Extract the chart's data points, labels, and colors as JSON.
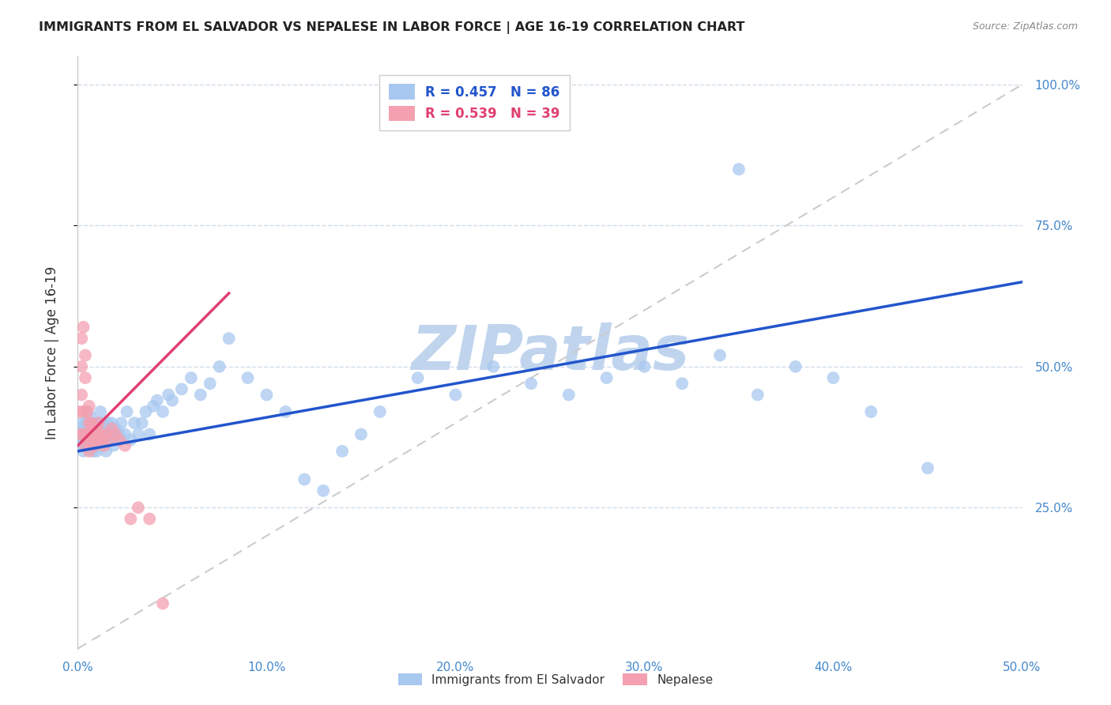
{
  "title": "IMMIGRANTS FROM EL SALVADOR VS NEPALESE IN LABOR FORCE | AGE 16-19 CORRELATION CHART",
  "source": "Source: ZipAtlas.com",
  "ylabel": "In Labor Force | Age 16-19",
  "xlim": [
    0.0,
    0.5
  ],
  "ylim": [
    0.0,
    1.05
  ],
  "xticks": [
    0.0,
    0.1,
    0.2,
    0.3,
    0.4,
    0.5
  ],
  "xticklabels": [
    "0.0%",
    "10.0%",
    "20.0%",
    "30.0%",
    "40.0%",
    "50.0%"
  ],
  "yticks": [
    0.25,
    0.5,
    0.75,
    1.0
  ],
  "yticklabels": [
    "25.0%",
    "50.0%",
    "75.0%",
    "100.0%"
  ],
  "R_salvador": 0.457,
  "N_salvador": 86,
  "R_nepalese": 0.539,
  "N_nepalese": 39,
  "salvador_color": "#a8c8f0",
  "nepalese_color": "#f4a0b0",
  "salvador_line_color": "#2255cc",
  "nepalese_line_color": "#e04070",
  "watermark": "ZIPatlas",
  "watermark_color": "#c0d4ee",
  "legend_salvador": "Immigrants from El Salvador",
  "legend_nepalese": "Nepalese",
  "salvador_x": [
    0.001,
    0.002,
    0.002,
    0.003,
    0.003,
    0.003,
    0.004,
    0.004,
    0.005,
    0.005,
    0.005,
    0.006,
    0.006,
    0.006,
    0.007,
    0.007,
    0.007,
    0.008,
    0.008,
    0.008,
    0.009,
    0.009,
    0.01,
    0.01,
    0.01,
    0.011,
    0.011,
    0.012,
    0.012,
    0.013,
    0.013,
    0.014,
    0.015,
    0.015,
    0.016,
    0.016,
    0.017,
    0.018,
    0.018,
    0.019,
    0.02,
    0.021,
    0.022,
    0.023,
    0.025,
    0.026,
    0.028,
    0.03,
    0.032,
    0.034,
    0.036,
    0.038,
    0.04,
    0.042,
    0.045,
    0.048,
    0.05,
    0.055,
    0.06,
    0.065,
    0.07,
    0.075,
    0.08,
    0.09,
    0.1,
    0.11,
    0.12,
    0.13,
    0.14,
    0.15,
    0.16,
    0.18,
    0.2,
    0.22,
    0.24,
    0.26,
    0.28,
    0.3,
    0.32,
    0.34,
    0.36,
    0.38,
    0.4,
    0.42,
    0.45,
    0.35
  ],
  "salvador_y": [
    0.38,
    0.36,
    0.4,
    0.37,
    0.39,
    0.35,
    0.4,
    0.37,
    0.38,
    0.42,
    0.36,
    0.39,
    0.37,
    0.4,
    0.38,
    0.36,
    0.41,
    0.37,
    0.39,
    0.35,
    0.38,
    0.4,
    0.37,
    0.39,
    0.35,
    0.38,
    0.4,
    0.37,
    0.42,
    0.38,
    0.4,
    0.37,
    0.39,
    0.35,
    0.4,
    0.38,
    0.37,
    0.4,
    0.38,
    0.36,
    0.39,
    0.37,
    0.38,
    0.4,
    0.38,
    0.42,
    0.37,
    0.4,
    0.38,
    0.4,
    0.42,
    0.38,
    0.43,
    0.44,
    0.42,
    0.45,
    0.44,
    0.46,
    0.48,
    0.45,
    0.47,
    0.5,
    0.55,
    0.48,
    0.45,
    0.42,
    0.3,
    0.28,
    0.35,
    0.38,
    0.42,
    0.48,
    0.45,
    0.5,
    0.47,
    0.45,
    0.48,
    0.5,
    0.47,
    0.52,
    0.45,
    0.5,
    0.48,
    0.42,
    0.32,
    0.85
  ],
  "nepalese_x": [
    0.001,
    0.001,
    0.002,
    0.002,
    0.002,
    0.003,
    0.003,
    0.003,
    0.004,
    0.004,
    0.004,
    0.005,
    0.005,
    0.005,
    0.006,
    0.006,
    0.006,
    0.007,
    0.007,
    0.008,
    0.008,
    0.009,
    0.009,
    0.01,
    0.01,
    0.011,
    0.012,
    0.013,
    0.014,
    0.015,
    0.016,
    0.018,
    0.02,
    0.022,
    0.025,
    0.028,
    0.032,
    0.038,
    0.045
  ],
  "nepalese_y": [
    0.38,
    0.42,
    0.45,
    0.5,
    0.55,
    0.38,
    0.42,
    0.57,
    0.36,
    0.48,
    0.52,
    0.38,
    0.42,
    0.37,
    0.4,
    0.35,
    0.43,
    0.38,
    0.4,
    0.37,
    0.39,
    0.36,
    0.38,
    0.37,
    0.39,
    0.4,
    0.38,
    0.37,
    0.36,
    0.38,
    0.37,
    0.39,
    0.38,
    0.37,
    0.36,
    0.23,
    0.25,
    0.23,
    0.08
  ],
  "salvador_line_x": [
    0.0,
    0.5
  ],
  "salvador_line_y": [
    0.35,
    0.65
  ],
  "nepalese_line_x": [
    0.0,
    0.08
  ],
  "nepalese_line_y": [
    0.36,
    0.63
  ]
}
